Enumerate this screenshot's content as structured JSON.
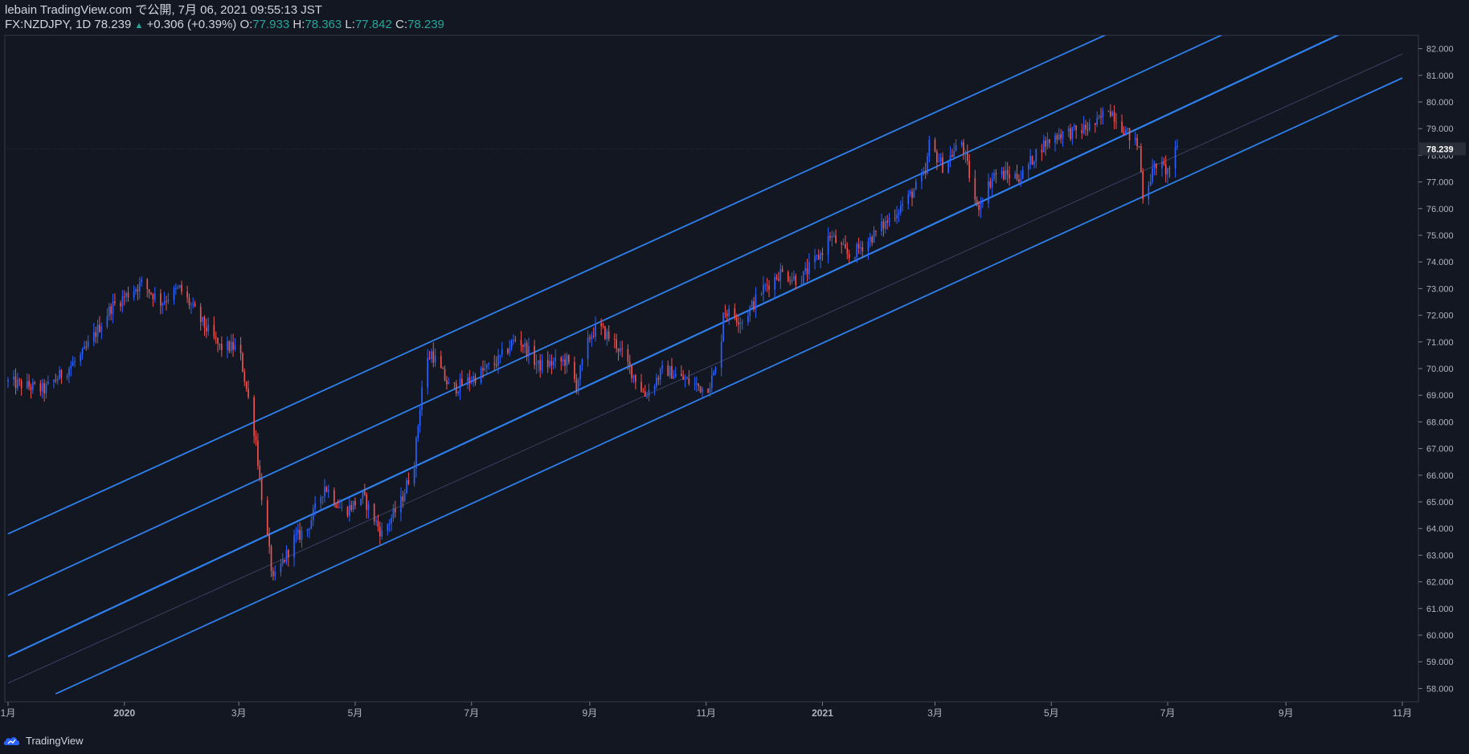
{
  "header": {
    "line1": "lebain TradingView.com で公開, 7月 06, 2021 09:55:13 JST",
    "symbol": "FX:NZDJPY, 1D 78.239",
    "change_arrow": "▲",
    "change": "+0.306 (+0.39%)",
    "o_label": "O:",
    "o_value": "77.933",
    "h_label": "H:",
    "h_value": "78.363",
    "l_label": "L:",
    "l_value": "77.842",
    "c_label": "C:",
    "c_value": "78.239"
  },
  "footer": {
    "brand": "TradingView",
    "logo_icon": "tradingview-cloud-icon"
  },
  "colors": {
    "background": "#131722",
    "up": "#2962ff",
    "down": "#ef5350",
    "channel": "#2f80ed",
    "axis_text": "#b2b5be",
    "price_tag_bg": "#2a2e39"
  },
  "chart_data": {
    "type": "candlestick",
    "symbol": "FX:NZDJPY",
    "interval": "1D",
    "y_range": [
      57.5,
      82.5
    ],
    "y_ticks": [
      "82.000",
      "81.000",
      "80.000",
      "79.000",
      "78.000",
      "77.000",
      "76.000",
      "75.000",
      "74.000",
      "73.000",
      "72.000",
      "71.000",
      "70.000",
      "69.000",
      "68.000",
      "67.000",
      "66.000",
      "65.000",
      "64.000",
      "63.000",
      "62.000",
      "61.000",
      "60.000",
      "59.000",
      "58.000"
    ],
    "x_tick_labels": [
      "1月",
      "2020",
      "3月",
      "5月",
      "7月",
      "9月",
      "11月",
      "2021",
      "3月",
      "5月",
      "7月",
      "9月",
      "11月"
    ],
    "x_tick_dates": [
      "2019-11-01",
      "2020-01-01",
      "2020-03-01",
      "2020-05-01",
      "2020-07-01",
      "2020-09-01",
      "2020-11-01",
      "2021-01-01",
      "2021-03-01",
      "2021-05-01",
      "2021-07-01",
      "2021-09-01",
      "2021-11-01"
    ],
    "last_price": "78.239",
    "price_path": [
      [
        "2019-11-01",
        69.5
      ],
      [
        "2019-11-20",
        69.2
      ],
      [
        "2019-12-10",
        70.5
      ],
      [
        "2019-12-25",
        72.3
      ],
      [
        "2020-01-10",
        73.2
      ],
      [
        "2020-01-20",
        72.5
      ],
      [
        "2020-01-30",
        73.0
      ],
      [
        "2020-02-10",
        71.8
      ],
      [
        "2020-02-20",
        70.8
      ],
      [
        "2020-03-01",
        70.8
      ],
      [
        "2020-03-10",
        67.3
      ],
      [
        "2020-03-12",
        65.8
      ],
      [
        "2020-03-19",
        62.0
      ],
      [
        "2020-03-30",
        63.6
      ],
      [
        "2020-04-06",
        64.0
      ],
      [
        "2020-04-15",
        65.6
      ],
      [
        "2020-04-25",
        64.6
      ],
      [
        "2020-05-05",
        65.2
      ],
      [
        "2020-05-15",
        63.8
      ],
      [
        "2020-05-25",
        65.0
      ],
      [
        "2020-06-01",
        66.5
      ],
      [
        "2020-06-06",
        70.0
      ],
      [
        "2020-06-10",
        70.6
      ],
      [
        "2020-06-20",
        69.2
      ],
      [
        "2020-07-01",
        69.6
      ],
      [
        "2020-07-15",
        70.3
      ],
      [
        "2020-07-25",
        71.2
      ],
      [
        "2020-08-05",
        70.1
      ],
      [
        "2020-08-20",
        70.3
      ],
      [
        "2020-08-25",
        69.4
      ],
      [
        "2020-09-01",
        71.2
      ],
      [
        "2020-09-05",
        71.6
      ],
      [
        "2020-09-15",
        70.9
      ],
      [
        "2020-09-30",
        69.0
      ],
      [
        "2020-10-10",
        70.0
      ],
      [
        "2020-10-20",
        69.6
      ],
      [
        "2020-11-01",
        69.2
      ],
      [
        "2020-11-08",
        70.2
      ],
      [
        "2020-11-10",
        72.2
      ],
      [
        "2020-11-20",
        71.8
      ],
      [
        "2020-12-01",
        73.0
      ],
      [
        "2020-12-10",
        73.6
      ],
      [
        "2020-12-20",
        73.3
      ],
      [
        "2020-12-31",
        74.3
      ],
      [
        "2021-01-05",
        75.0
      ],
      [
        "2021-01-15",
        74.2
      ],
      [
        "2021-01-25",
        74.8
      ],
      [
        "2021-02-05",
        75.6
      ],
      [
        "2021-02-15",
        76.4
      ],
      [
        "2021-02-24",
        77.3
      ],
      [
        "2021-02-26",
        78.4
      ],
      [
        "2021-03-05",
        77.6
      ],
      [
        "2021-03-15",
        78.5
      ],
      [
        "2021-03-23",
        76.0
      ],
      [
        "2021-04-01",
        77.3
      ],
      [
        "2021-04-15",
        77.2
      ],
      [
        "2021-04-25",
        78.3
      ],
      [
        "2021-05-05",
        78.8
      ],
      [
        "2021-05-15",
        78.9
      ],
      [
        "2021-05-25",
        79.2
      ],
      [
        "2021-05-31",
        79.8
      ],
      [
        "2021-06-10",
        78.8
      ],
      [
        "2021-06-16",
        78.3
      ],
      [
        "2021-06-18",
        76.5
      ],
      [
        "2021-06-25",
        77.7
      ],
      [
        "2021-07-01",
        77.4
      ],
      [
        "2021-07-06",
        78.239
      ]
    ],
    "channel_lines": [
      {
        "name": "outer-upper",
        "points": [
          [
            "2019-11-01",
            63.8
          ],
          [
            "2021-06-01",
            82.6
          ]
        ]
      },
      {
        "name": "upper",
        "points": [
          [
            "2019-11-01",
            61.5
          ],
          [
            "2021-08-01",
            82.6
          ]
        ]
      },
      {
        "name": "middle",
        "points": [
          [
            "2019-11-01",
            59.2
          ],
          [
            "2021-10-01",
            82.6
          ]
        ]
      },
      {
        "name": "lower",
        "points": [
          [
            "2019-11-26",
            57.8
          ],
          [
            "2021-11-01",
            80.9
          ]
        ]
      }
    ]
  }
}
